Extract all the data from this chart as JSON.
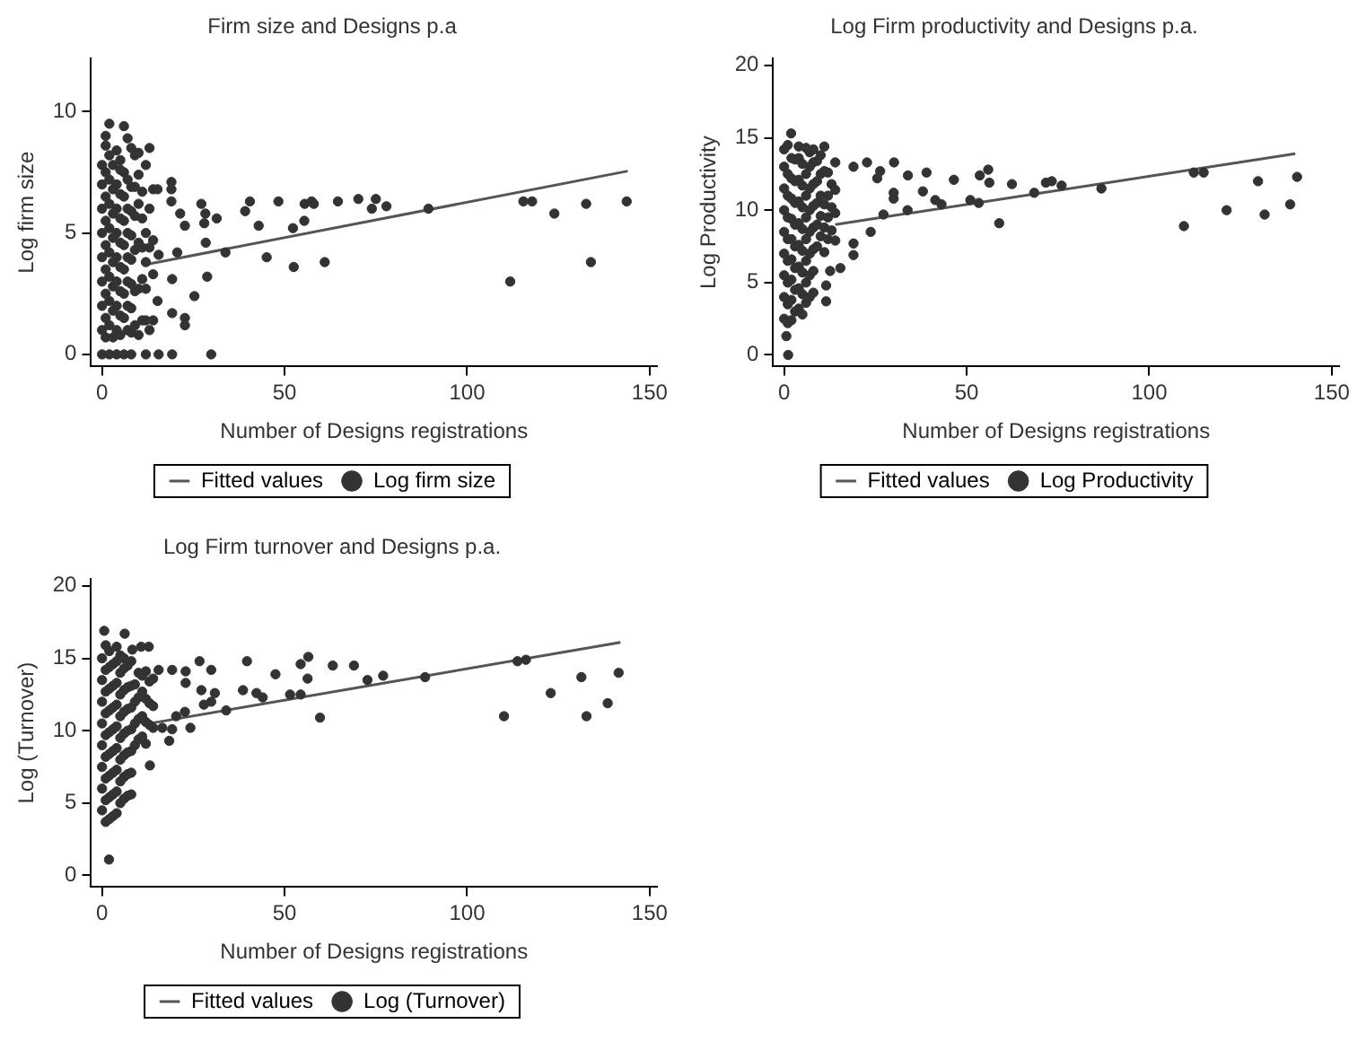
{
  "chart_data": [
    {
      "type": "scatter",
      "title": "Firm size and Designs p.a",
      "xlabel": "Number of Designs registrations",
      "ylabel": "Log firm size",
      "xlim": [
        -3,
        152
      ],
      "xticks": [
        0,
        50,
        100,
        150
      ],
      "ylim": [
        -0.5,
        12.2
      ],
      "yticks": [
        0,
        5,
        10
      ],
      "grid": false,
      "legend": "bottom",
      "series": [
        {
          "name": "Fitted values",
          "type": "line",
          "color": "#555555",
          "x": [
            12,
            144
          ],
          "values": [
            3.7,
            7.55
          ]
        },
        {
          "name": "Log firm size",
          "type": "scatter",
          "color": "#333333",
          "marker": "circle",
          "x": [
            0,
            0,
            0,
            0,
            0,
            0,
            0,
            0,
            0,
            1,
            1,
            1,
            1,
            1,
            1,
            1,
            1,
            1,
            1,
            2,
            2,
            2,
            2,
            2,
            2,
            2,
            2,
            2,
            2,
            3,
            3,
            3,
            3,
            3,
            3,
            3,
            3,
            4,
            4,
            4,
            4,
            4,
            4,
            4,
            4,
            4,
            5,
            5,
            5,
            5,
            5,
            5,
            5,
            5,
            5,
            6,
            6,
            6,
            6,
            6,
            6,
            6,
            6,
            6,
            7,
            7,
            7,
            7,
            7,
            7,
            7,
            7,
            8,
            8,
            8,
            8,
            8,
            8,
            8,
            8,
            8,
            9,
            9,
            9,
            9,
            9,
            9,
            10,
            10,
            10,
            10,
            10,
            10,
            11,
            11,
            11,
            11,
            11,
            12,
            12,
            12,
            12,
            12,
            12,
            13,
            13,
            13,
            13,
            14,
            14,
            14,
            14,
            19,
            19,
            19,
            21.4,
            22.7,
            20.6,
            19.2,
            19.2,
            22.7,
            22.7,
            15.5,
            19.2,
            15.2,
            15.2,
            15.5,
            27.2,
            28.3,
            28,
            28.4,
            28.8,
            25.3,
            29.9,
            31.4,
            33.8,
            39.2,
            40.5,
            42.9,
            45.1,
            48.3,
            52.3,
            52.5,
            55.4,
            55.5,
            57.4,
            58,
            61,
            64.6,
            70.2,
            73.9,
            75,
            77.9,
            89.4,
            111.8,
            115.4,
            117.8,
            123.9,
            132.6,
            133.9,
            143.7
          ],
          "values": [
            0,
            1.0,
            2.0,
            3.0,
            4.0,
            5.0,
            6.0,
            7.0,
            7.8,
            0.7,
            1.5,
            2.5,
            3.5,
            4.5,
            5.5,
            6.5,
            7.5,
            8.6,
            9.0,
            0,
            1.2,
            2.2,
            3.2,
            4.2,
            5.2,
            6.2,
            7.2,
            8.2,
            9.5,
            0.7,
            1.8,
            2.8,
            3.8,
            4.8,
            5.8,
            6.8,
            7.8,
            0,
            1.0,
            2.0,
            3.0,
            4.0,
            5.0,
            6.0,
            7.0,
            8.4,
            0.8,
            1.6,
            2.6,
            3.6,
            4.6,
            5.6,
            6.6,
            7.6,
            8.0,
            0,
            1.5,
            2.5,
            3.5,
            4.5,
            5.5,
            6.5,
            7.5,
            9.4,
            1.0,
            2.0,
            3.0,
            4.0,
            5.0,
            6.0,
            7.2,
            8.9,
            0,
            0.9,
            1.9,
            2.9,
            3.9,
            4.9,
            5.9,
            6.9,
            8.5,
            1.2,
            2.6,
            4.3,
            5.7,
            6.9,
            8.2,
            0.8,
            2.7,
            4.6,
            6.2,
            7.4,
            8.3,
            1.4,
            3.1,
            4.4,
            5.6,
            6.7,
            0,
            1.4,
            2.7,
            3.8,
            5.0,
            7.8,
            1.0,
            4.4,
            6.0,
            8.5,
            1.4,
            3.3,
            4.7,
            6.8,
            7.1,
            6.8,
            6.3,
            5.8,
            5.3,
            4.2,
            3.1,
            1.7,
            1.5,
            1.2,
            0,
            0,
            6.8,
            2.2,
            4.1,
            6.2,
            5.8,
            5.4,
            4.6,
            3.2,
            2.4,
            0,
            5.6,
            4.2,
            5.9,
            6.3,
            5.3,
            4.0,
            6.3,
            5.2,
            3.6,
            5.5,
            6.2,
            6.3,
            6.2,
            3.8,
            6.3,
            6.4,
            6.0,
            6.4,
            6.1,
            6.0,
            3.0,
            6.3,
            6.3,
            5.8,
            6.2,
            3.8,
            6.3
          ]
        }
      ]
    },
    {
      "type": "scatter",
      "title": "Log Firm productivity and Designs p.a.",
      "xlabel": "Number of Designs registrations",
      "ylabel": "Log Productivity",
      "xlim": [
        -3,
        152
      ],
      "xticks": [
        0,
        50,
        100,
        150
      ],
      "ylim": [
        -0.8,
        20.5
      ],
      "yticks": [
        0,
        5,
        10,
        15,
        20
      ],
      "grid": false,
      "legend": "bottom",
      "series": [
        {
          "name": "Fitted values",
          "type": "line",
          "color": "#555555",
          "x": [
            14,
            140
          ],
          "values": [
            9.0,
            13.9
          ]
        },
        {
          "name": "Log Productivity",
          "type": "scatter",
          "color": "#333333",
          "marker": "circle",
          "x": [
            0,
            0,
            0,
            0,
            0,
            0,
            0,
            0,
            0,
            1,
            1,
            1,
            1,
            1,
            1,
            1,
            1,
            1,
            2,
            2,
            2,
            2,
            2,
            2,
            2,
            2,
            2,
            3,
            3,
            3,
            3,
            3,
            3,
            3,
            3,
            4,
            4,
            4,
            4,
            4,
            4,
            4,
            4,
            4,
            5,
            5,
            5,
            5,
            5,
            5,
            5,
            5,
            6,
            6,
            6,
            6,
            6,
            6,
            6,
            6,
            7,
            7,
            7,
            7,
            7,
            7,
            7,
            7,
            8,
            8,
            8,
            8,
            8,
            8,
            8,
            8,
            9,
            9,
            9,
            9,
            9,
            10,
            10,
            10,
            10,
            10,
            11,
            11,
            11,
            11,
            11,
            12,
            12,
            12,
            12,
            13,
            13,
            13,
            14,
            14,
            14,
            14,
            1.9,
            1.1,
            0.6,
            19,
            22.7,
            30.1,
            30,
            30,
            26.3,
            25.5,
            33.9,
            39,
            38,
            41.4,
            43.1,
            33.8,
            27.2,
            23.7,
            19,
            15.4,
            12.6,
            11.5,
            11.5,
            19,
            46.5,
            51,
            53.3,
            53.6,
            55.9,
            56.2,
            58.9,
            62.4,
            68.5,
            71.7,
            73.3,
            76,
            86.9,
            109.5,
            112.2,
            114.9,
            121.2,
            129.8,
            131.6,
            138.6,
            140.5
          ],
          "values": [
            2.5,
            4,
            5.5,
            7,
            8.5,
            10,
            11.5,
            13,
            14.2,
            2.2,
            3.5,
            5,
            6.5,
            8,
            9.5,
            11,
            12.5,
            14.5,
            2.4,
            3.8,
            5.2,
            6.6,
            8,
            9.4,
            10.8,
            12.2,
            13.6,
            3.0,
            4.5,
            6,
            7.5,
            9,
            10.5,
            12,
            13.5,
            3.2,
            4.6,
            6.1,
            7.6,
            9.1,
            10.6,
            12.1,
            13.6,
            14.4,
            2.8,
            4.2,
            5.7,
            7.2,
            8.7,
            10.2,
            11.7,
            13.2,
            3.6,
            5,
            6.5,
            8,
            9.5,
            11,
            12.5,
            14.3,
            4.0,
            5.5,
            7,
            8.5,
            10,
            11.5,
            13,
            14.0,
            4.3,
            5.8,
            7.3,
            8.8,
            10.3,
            11.8,
            13.3,
            14.2,
            7.5,
            9,
            10.5,
            12,
            13.4,
            8.2,
            9.6,
            11,
            12.5,
            13.8,
            7.1,
            8.8,
            10.4,
            12.7,
            14.4,
            8.0,
            9.5,
            11,
            12.6,
            8.6,
            10.2,
            11.8,
            7.9,
            9.8,
            11.4,
            13.3,
            15.3,
            0,
            1.3,
            13.0,
            13.3,
            13.3,
            11.2,
            10.8,
            12.7,
            12.2,
            12.4,
            12.6,
            11.3,
            10.7,
            10.4,
            10.0,
            9.7,
            8.5,
            6.9,
            6.0,
            5.8,
            3.7,
            4.8,
            7.7,
            12.1,
            10.7,
            10.5,
            12.4,
            12.8,
            11.9,
            9.1,
            11.8,
            11.2,
            11.9,
            12.0,
            11.7,
            11.5,
            8.9,
            12.6,
            12.6,
            10.0,
            12.0,
            9.7,
            10.4,
            12.3
          ]
        }
      ]
    },
    {
      "type": "scatter",
      "title": "Log Firm turnover and Designs p.a.",
      "xlabel": "Number of Designs registrations",
      "ylabel": "Log (Turnover)",
      "xlim": [
        -3,
        152
      ],
      "xticks": [
        0,
        50,
        100,
        150
      ],
      "ylim": [
        -0.8,
        20.5
      ],
      "yticks": [
        0,
        5,
        10,
        15,
        20
      ],
      "grid": false,
      "legend": "bottom",
      "series": [
        {
          "name": "Fitted values",
          "type": "line",
          "color": "#555555",
          "x": [
            13,
            142
          ],
          "values": [
            10.5,
            16.1
          ]
        },
        {
          "name": "Log (Turnover)",
          "type": "scatter",
          "color": "#333333",
          "marker": "circle",
          "x": [
            0,
            0,
            0,
            0,
            0,
            0,
            0,
            0,
            1,
            1,
            1,
            1,
            1,
            1,
            1,
            1,
            1,
            2,
            2,
            2,
            2,
            2,
            2,
            2,
            2,
            2,
            3,
            3,
            3,
            3,
            3,
            3,
            3,
            3,
            4,
            4,
            4,
            4,
            4,
            4,
            4,
            4,
            4,
            5,
            5,
            5,
            5,
            5,
            5,
            5,
            5,
            6,
            6,
            6,
            6,
            6,
            6,
            6,
            6,
            7,
            7,
            7,
            7,
            7,
            7,
            7,
            8,
            8,
            8,
            8,
            8,
            8,
            8,
            9,
            9,
            9,
            9,
            10,
            10,
            10,
            10,
            11,
            11,
            11,
            11,
            12,
            12,
            12,
            12,
            13,
            13,
            13,
            14,
            14,
            14,
            0.6,
            6.2,
            1.9,
            13.1,
            18.4,
            16.5,
            19.2,
            24.2,
            22.7,
            20.3,
            26.7,
            29.9,
            27.2,
            27.9,
            29.9,
            30.9,
            34,
            38.6,
            39.7,
            42.3,
            44,
            47.5,
            51.5,
            54.4,
            54.4,
            56.5,
            56.3,
            59.7,
            63.2,
            69,
            72.7,
            77,
            88.5,
            110.1,
            113.8,
            116.1,
            122.9,
            131.3,
            132.7,
            138.5,
            141.5,
            22.9,
            22.9,
            19.2,
            15.5,
            10.7,
            12.8,
            8.3
          ],
          "values": [
            4.5,
            6,
            7.5,
            9,
            10.5,
            12,
            13.5,
            15,
            3.7,
            5.2,
            6.7,
            8.2,
            9.7,
            11.2,
            12.7,
            14.2,
            15.9,
            3.9,
            5.4,
            6.9,
            8.4,
            9.9,
            11.4,
            12.9,
            14.4,
            15.5,
            4.1,
            5.6,
            7.1,
            8.6,
            10.1,
            11.6,
            13.1,
            14.6,
            4.3,
            5.8,
            7.3,
            8.8,
            10.3,
            11.8,
            13.3,
            14.8,
            15.8,
            5.0,
            6.5,
            8,
            9.5,
            11,
            12.5,
            14,
            15.2,
            5.3,
            6.8,
            8.3,
            9.8,
            11.3,
            12.8,
            14.3,
            15.0,
            5.5,
            7,
            8.5,
            10,
            11.5,
            13,
            14.5,
            5.6,
            7.1,
            8.6,
            10.1,
            11.6,
            13.1,
            14.8,
            9.0,
            10.5,
            12,
            13.2,
            9.4,
            10.8,
            12.3,
            14.0,
            9.6,
            11,
            12.7,
            13.8,
            9.1,
            10.6,
            12.2,
            14.1,
            10.4,
            11.9,
            13.4,
            10.2,
            11.7,
            13.6,
            16.9,
            16.7,
            1.1,
            7.6,
            9.3,
            10.2,
            10.1,
            10.2,
            11.3,
            11.0,
            14.8,
            14.2,
            12.8,
            11.8,
            12.0,
            12.6,
            11.4,
            12.8,
            14.8,
            12.6,
            12.3,
            13.9,
            12.5,
            12.5,
            14.6,
            15.1,
            13.6,
            10.9,
            14.5,
            14.5,
            13.5,
            13.8,
            13.7,
            11.0,
            14.8,
            14.9,
            12.6,
            13.7,
            11.0,
            11.9,
            14.0,
            14.1,
            13.3,
            14.2,
            14.2,
            15.8,
            15.8,
            15.6
          ]
        }
      ]
    }
  ]
}
